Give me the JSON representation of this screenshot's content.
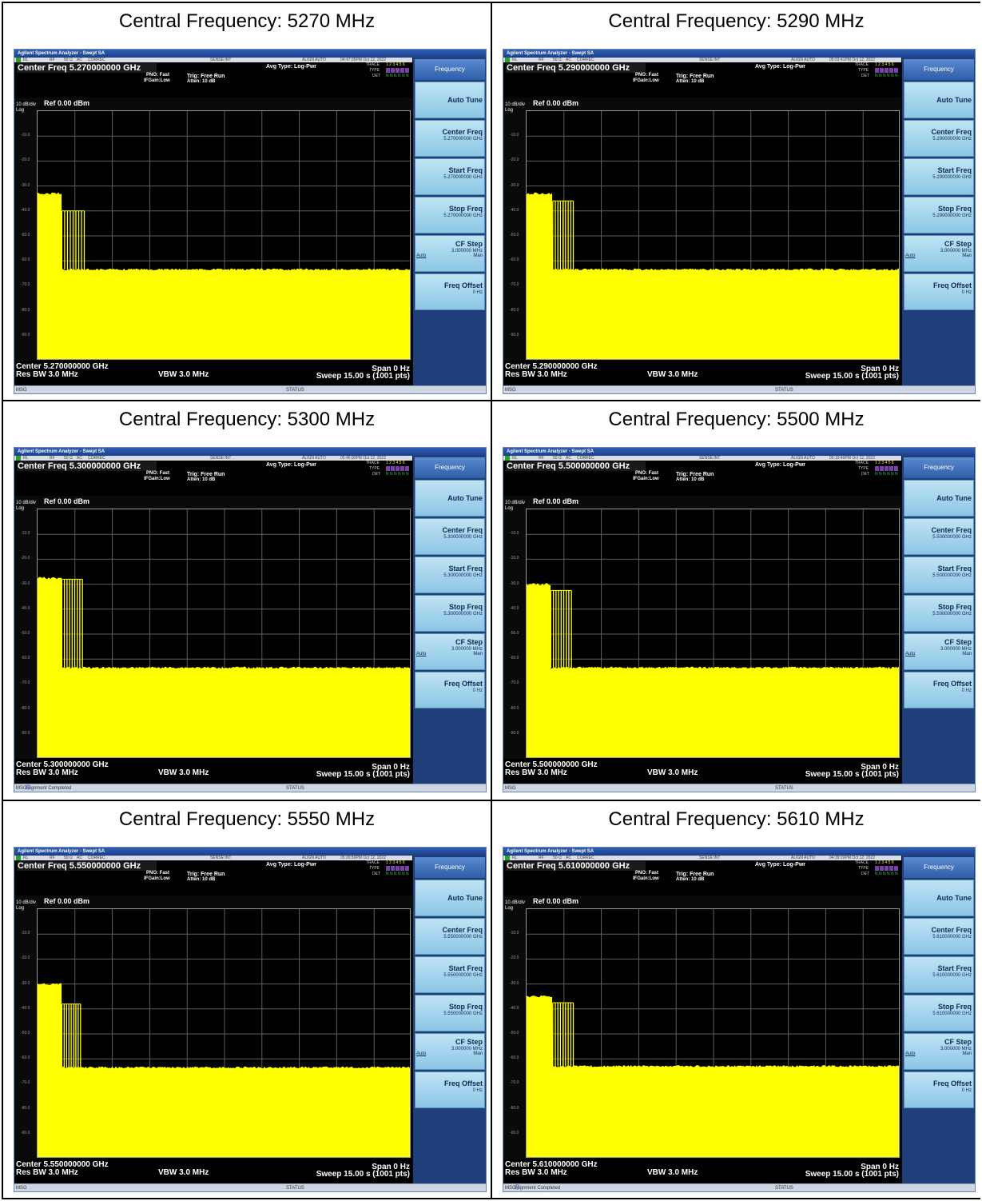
{
  "analyzer": {
    "window_title": "Agilent Spectrum Analyzer - Swept SA",
    "status_bar": {
      "rl": "RL",
      "rf": "RF",
      "ohm": "50 Ω",
      "ac": "AC",
      "correc": "CORREC",
      "sense": "SENSE:INT",
      "align": "ALIGN AUTO"
    },
    "pno": "PNO: Fast",
    "ifgain": "IFGain:Low",
    "trig": "Trig: Free Run",
    "atten": "Atten: 10 dB",
    "avg_type": "Avg Type: Log-Pwr",
    "trace_label": "TRACE",
    "type_label": "TYPE",
    "det_label": "DET",
    "trace_digits": "1 2 3 4 5 6",
    "det_values": "N N N N N N",
    "scale": "10 dB/div",
    "log": "Log",
    "ref": "Ref 0.00 dBm",
    "y_ticks": [
      "-10.0",
      "-20.0",
      "-30.0",
      "-40.0",
      "-50.0",
      "-60.0",
      "-70.0",
      "-80.0",
      "-90.0"
    ],
    "res_bw": "Res BW 3.0 MHz",
    "vbw": "VBW 3.0 MHz",
    "span": "Span 0 Hz",
    "sweep": "Sweep  15.00 s (1001 pts)",
    "msg": "MSG",
    "status": "STATUS",
    "menu": {
      "title": "Frequency",
      "auto_tune": "Auto Tune",
      "center_freq": "Center Freq",
      "start_freq": "Start Freq",
      "stop_freq": "Stop Freq",
      "cf_step": "CF Step",
      "cf_step_value": "3.000000 MHz",
      "auto": "Auto",
      "man": "Man",
      "freq_offset": "Freq Offset",
      "freq_offset_value": "0 Hz"
    }
  },
  "panels": [
    {
      "title": "Central Frequency: 5270 MHz",
      "center_freq_header": "Center Freq 5.270000000 GHz",
      "freq_value": "5.270000000 GHz",
      "center_footer": "Center 5.270000000 GHz",
      "timestamp": "04:47:05PM Oct 12, 2022",
      "msg_text": "",
      "chart_data": {
        "type": "line",
        "ylim": [
          -100,
          0
        ],
        "plateau_level": -33,
        "burst_level": -40,
        "floor_level": -63.5,
        "plateau_end_frac": 0.065,
        "burst_end_frac": 0.125
      }
    },
    {
      "title": "Central Frequency: 5290 MHz",
      "center_freq_header": "Center Freq 5.290000000 GHz",
      "freq_value": "5.290000000 GHz",
      "center_footer": "Center 5.290000000 GHz",
      "timestamp": "05:03:41PM Oct 12, 2022",
      "msg_text": "",
      "chart_data": {
        "type": "line",
        "ylim": [
          -100,
          0
        ],
        "plateau_level": -33,
        "burst_level": -36,
        "floor_level": -63.5,
        "plateau_end_frac": 0.07,
        "burst_end_frac": 0.125
      }
    },
    {
      "title": "Central Frequency: 5300 MHz",
      "center_freq_header": "Center Freq 5.300000000 GHz",
      "freq_value": "5.300000000 GHz",
      "center_footer": "Center 5.300000000 GHz",
      "timestamp": "05:46:00PM Oct 12, 2022",
      "msg_text": "Alignment Completed",
      "chart_data": {
        "type": "line",
        "ylim": [
          -100,
          0
        ],
        "plateau_level": -27.5,
        "burst_level": -28,
        "floor_level": -63.5,
        "plateau_end_frac": 0.065,
        "burst_end_frac": 0.12
      }
    },
    {
      "title": "Central Frequency: 5500 MHz",
      "center_freq_header": "Center Freq 5.500000000 GHz",
      "freq_value": "5.500000000 GHz",
      "center_footer": "Center 5.500000000 GHz",
      "timestamp": "05:19:49PM Oct 12, 2022",
      "msg_text": "",
      "chart_data": {
        "type": "line",
        "ylim": [
          -100,
          0
        ],
        "plateau_level": -30,
        "burst_level": -32.5,
        "floor_level": -63.5,
        "plateau_end_frac": 0.065,
        "burst_end_frac": 0.12
      }
    },
    {
      "title": "Central Frequency: 5550 MHz",
      "center_freq_header": "Center Freq 5.550000000 GHz",
      "freq_value": "5.550000000 GHz",
      "center_footer": "Center 5.550000000 GHz",
      "timestamp": "05:26:59PM Oct 12, 2022",
      "msg_text": "",
      "chart_data": {
        "type": "line",
        "ylim": [
          -100,
          0
        ],
        "plateau_level": -30,
        "burst_level": -38,
        "floor_level": -63.5,
        "plateau_end_frac": 0.065,
        "burst_end_frac": 0.115
      }
    },
    {
      "title": "Central Frequency: 5610 MHz",
      "center_freq_header": "Center Freq 5.610000000 GHz",
      "freq_value": "5.610000000 GHz",
      "center_footer": "Center 5.610000000 GHz",
      "timestamp": "04:39:19PM Oct 12, 2022",
      "msg_text": "Alignment Completed",
      "chart_data": {
        "type": "line",
        "ylim": [
          -100,
          0
        ],
        "plateau_level": -35,
        "burst_level": -37.5,
        "floor_level": -63,
        "plateau_end_frac": 0.07,
        "burst_end_frac": 0.125
      }
    }
  ]
}
